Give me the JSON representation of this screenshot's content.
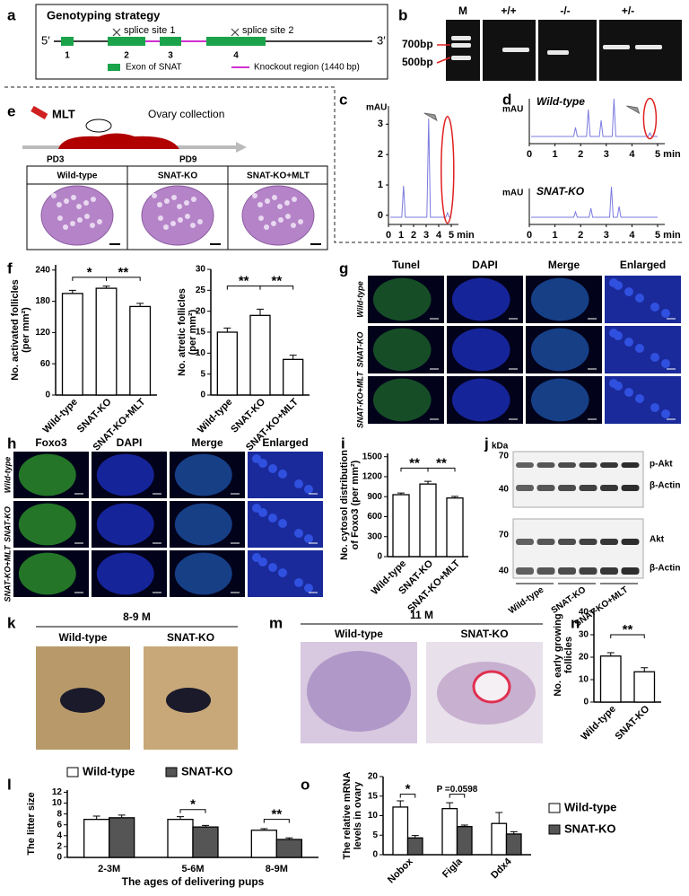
{
  "panels": {
    "a": {
      "label": "a",
      "title": "Genotyping strategy",
      "end5": "5′",
      "end3": "3′",
      "site1": "splice site 1",
      "site2": "splice site 2",
      "exons": [
        "1",
        "2",
        "3",
        "4"
      ],
      "legend_exon": "Exon of SNAT",
      "legend_ko": "Knockout region (1440 bp)"
    },
    "b": {
      "label": "b",
      "lanes": [
        "M",
        "+/+",
        "-/-",
        "+/-"
      ],
      "markers": [
        "700bp",
        "500bp"
      ]
    },
    "c": {
      "label": "c",
      "chart": {
        "ylabel": "mAU",
        "ylim": [
          -0.3,
          3.6
        ],
        "yticks": [
          0,
          1,
          2,
          3
        ],
        "xlim": [
          0,
          5
        ],
        "xticks": [
          0,
          1,
          2,
          3,
          4,
          {
            "value": 5,
            "label": "5 min"
          }
        ]
      }
    },
    "d": {
      "label": "d",
      "charts": [
        {
          "ylabel": "mAU",
          "title": "Wild-type",
          "xlim": [
            0,
            5
          ],
          "xticks": [
            0,
            1,
            2,
            3,
            4,
            {
              "value": 5,
              "label": "5 min"
            }
          ]
        },
        {
          "ylabel": "mAU",
          "title": "SNAT-KO",
          "xlim": [
            0,
            5
          ],
          "xticks": [
            0,
            1,
            2,
            3,
            4,
            {
              "value": 5,
              "label": "5 min"
            }
          ]
        }
      ]
    },
    "e": {
      "label": "e",
      "drug": "MLT",
      "collection": "Ovary collection",
      "start": "PD3",
      "end": "PD9",
      "groups": [
        "Wild-type",
        "SNAT-KO",
        "SNAT-KO+MLT"
      ]
    },
    "f": {
      "label": "f",
      "charts": [
        {
          "type": "bar",
          "ylabel": [
            "No. activated follicles",
            "(per mm²)"
          ],
          "ylim": [
            0,
            250
          ],
          "yticks": [
            0,
            60,
            120,
            180,
            240
          ],
          "categories": [
            "Wild-type",
            "SNAT-KO",
            "SNAT-KO+MLT"
          ],
          "series": [
            {
              "color": "#ffffff",
              "values": [
                195,
                205,
                170
              ],
              "errors": [
                6,
                4,
                6
              ]
            }
          ],
          "annotations": [
            "*",
            "**"
          ]
        },
        {
          "type": "bar",
          "ylabel": [
            "No. atretic follicles",
            "(per mm²)"
          ],
          "ylim": [
            0,
            30
          ],
          "yticks": [
            0,
            5,
            10,
            15,
            20,
            25,
            30
          ],
          "categories": [
            "Wild-type",
            "SNAT-KO",
            "SNAT-KO+MLT"
          ],
          "series": [
            {
              "color": "#ffffff",
              "values": [
                15,
                19,
                8.5
              ],
              "errors": [
                1,
                1.5,
                1
              ]
            }
          ],
          "annotations": [
            "**",
            "**"
          ]
        }
      ]
    },
    "g": {
      "label": "g",
      "columns": [
        "Tunel",
        "DAPI",
        "Merge",
        "Enlarged"
      ],
      "rows": [
        "Wild-type",
        "SNAT-KO",
        "SNAT-KO+MLT"
      ]
    },
    "h": {
      "label": "h",
      "columns": [
        "Foxo3",
        "DAPI",
        "Merge",
        "Enlarged"
      ],
      "rows": [
        "Wild-type",
        "SNAT-KO",
        "SNAT-KO+MLT"
      ]
    },
    "i": {
      "label": "i",
      "chart": {
        "type": "bar",
        "ylabel": [
          "No. cytosol distribution",
          "of Foxo3 (per mm²)"
        ],
        "ylim": [
          0,
          1550
        ],
        "yticks": [
          0,
          300,
          600,
          900,
          1200,
          1500
        ],
        "categories": [
          "Wild-type",
          "SNAT-KO",
          "SNAT-KO+MLT"
        ],
        "series": [
          {
            "color": "#ffffff",
            "values": [
              930,
              1090,
              880
            ],
            "errors": [
              25,
              40,
              25
            ]
          }
        ],
        "annotations": [
          "**",
          "**"
        ]
      }
    },
    "j": {
      "label": "j",
      "unit": "kDa",
      "sizes": [
        "70",
        "40",
        "70",
        "40"
      ],
      "bands": [
        "p-Akt",
        "β-Actin",
        "Akt",
        "β-Actin"
      ],
      "groups": [
        "Wild-type",
        "SNAT-KO",
        "SNAT-KO+MLT"
      ]
    },
    "k": {
      "label": "k",
      "age": "8-9 M",
      "groups": [
        "Wild-type",
        "SNAT-KO"
      ]
    },
    "m": {
      "label": "m",
      "age": "11 M",
      "groups": [
        "Wild-type",
        "SNAT-KO"
      ]
    },
    "n": {
      "label": "n",
      "chart": {
        "type": "bar",
        "ylabel": [
          "No. early growing",
          "follicles"
        ],
        "ylim": [
          0,
          42
        ],
        "yticks": [
          0,
          10,
          20,
          30,
          40
        ],
        "categories": [
          "Wild-type",
          "SNAT-KO"
        ],
        "series": [
          {
            "color": "#ffffff",
            "values": [
              20.5,
              13.5
            ],
            "errors": [
              1.5,
              1.8
            ]
          }
        ],
        "annotations": [
          "**"
        ]
      }
    },
    "l": {
      "label": "l",
      "chart": {
        "type": "bar",
        "ylabel": [
          "The litter size"
        ],
        "xlabel": "The ages of  delivering pups",
        "ylim": [
          0,
          12.4
        ],
        "yticks": [
          0,
          2,
          4,
          6,
          8,
          10,
          12
        ],
        "categories": [
          "2-3M",
          "5-6M",
          "8-9M"
        ],
        "series": [
          {
            "name": "Wild-type",
            "color": "#ffffff",
            "values": [
              7.0,
              7.0,
              5.0
            ],
            "errors": [
              0.6,
              0.5,
              0.3
            ]
          },
          {
            "name": "SNAT-KO",
            "color": "#555555",
            "values": [
              7.3,
              5.6,
              3.3
            ],
            "errors": [
              0.5,
              0.3,
              0.3
            ]
          }
        ],
        "annotations": [
          "*",
          "**"
        ]
      }
    },
    "o": {
      "label": "o",
      "chart": {
        "type": "bar",
        "ylabel": [
          "The relative mRNA",
          "levels in ovary"
        ],
        "ylim": [
          0,
          20
        ],
        "yticks": [
          0,
          5,
          10,
          15,
          20
        ],
        "categories": [
          "Nobox",
          "Figla",
          "Ddx4"
        ],
        "series": [
          {
            "name": "Wild-type",
            "color": "#ffffff",
            "values": [
              12.2,
              11.8,
              8.0
            ],
            "errors": [
              1.6,
              1.5,
              2.8
            ]
          },
          {
            "name": "SNAT-KO",
            "color": "#555555",
            "values": [
              4.3,
              7.2,
              5.3
            ],
            "errors": [
              0.6,
              0.4,
              0.6
            ]
          }
        ],
        "annotations": [
          "*",
          "P =0.0598"
        ]
      }
    }
  }
}
